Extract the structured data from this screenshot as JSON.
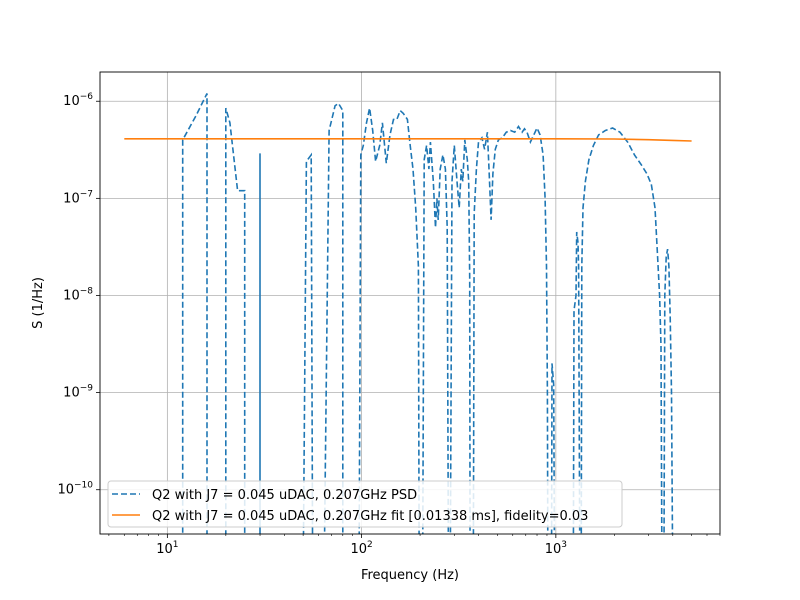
{
  "chart_data": {
    "type": "line",
    "xscale": "log",
    "yscale": "log",
    "xlabel": "Frequency (Hz)",
    "ylabel": "S (1/Hz)",
    "xlim": [
      4.5,
      7000
    ],
    "ylim": [
      3.5e-11,
      2e-06
    ],
    "grid": true,
    "x_ticks": [
      {
        "value": 10,
        "base": "10",
        "exp": "1"
      },
      {
        "value": 100,
        "base": "10",
        "exp": "2"
      },
      {
        "value": 1000,
        "base": "10",
        "exp": "3"
      }
    ],
    "y_ticks": [
      {
        "value": 1e-10,
        "base": "10",
        "exp": "−10"
      },
      {
        "value": 1e-09,
        "base": "10",
        "exp": "−9"
      },
      {
        "value": 1e-08,
        "base": "10",
        "exp": "−8"
      },
      {
        "value": 1e-07,
        "base": "10",
        "exp": "−7"
      },
      {
        "value": 1e-06,
        "base": "10",
        "exp": "−6"
      }
    ],
    "legend_position": "lower-left",
    "series": [
      {
        "name": "Q2 with J7 = 0.045 uDAC, 0.207GHz PSD",
        "color": "#1f77b4",
        "style": "dashed",
        "points": [
          [
            12,
            1e-11
          ],
          [
            12,
            4e-07
          ],
          [
            14,
            7e-07
          ],
          [
            16,
            1.2e-06
          ],
          [
            16,
            1e-11
          ],
          [
            20,
            1e-11
          ],
          [
            20,
            8.5e-07
          ],
          [
            21,
            6e-07
          ],
          [
            23,
            1.2e-07
          ],
          [
            25,
            1.2e-07
          ],
          [
            25,
            1e-11
          ],
          [
            30,
            1e-11
          ],
          [
            30,
            2.9e-07
          ],
          [
            30,
            1e-11
          ],
          [
            50,
            1e-11
          ],
          [
            52,
            2.4e-07
          ],
          [
            55,
            2.8e-07
          ],
          [
            56,
            1e-11
          ],
          [
            64,
            1e-11
          ],
          [
            68,
            5e-07
          ],
          [
            73,
            9e-07
          ],
          [
            76,
            9.5e-07
          ],
          [
            80,
            8e-07
          ],
          [
            80,
            1e-11
          ],
          [
            97,
            1e-11
          ],
          [
            99,
            2.8e-07
          ],
          [
            102,
            3.5e-07
          ],
          [
            106,
            6e-07
          ],
          [
            110,
            8.5e-07
          ],
          [
            114,
            5e-07
          ],
          [
            118,
            2.4e-07
          ],
          [
            124,
            3.5e-07
          ],
          [
            128,
            6e-07
          ],
          [
            134,
            2.3e-07
          ],
          [
            140,
            4.5e-07
          ],
          [
            146,
            6.5e-07
          ],
          [
            152,
            6.5e-07
          ],
          [
            158,
            8e-07
          ],
          [
            164,
            7.5e-07
          ],
          [
            172,
            6.5e-07
          ],
          [
            178,
            3.5e-07
          ],
          [
            184,
            2e-07
          ],
          [
            190,
            8e-08
          ],
          [
            196,
            2e-08
          ],
          [
            198,
            1e-11
          ],
          [
            206,
            1e-11
          ],
          [
            210,
            2.5e-07
          ],
          [
            216,
            3.5e-07
          ],
          [
            222,
            2e-07
          ],
          [
            226,
            3.8e-07
          ],
          [
            234,
            1.5e-07
          ],
          [
            240,
            5e-08
          ],
          [
            244,
            1e-07
          ],
          [
            248,
            6e-08
          ],
          [
            254,
            2e-07
          ],
          [
            262,
            2.8e-07
          ],
          [
            270,
            2e-07
          ],
          [
            276,
            5e-08
          ],
          [
            280,
            1e-11
          ],
          [
            286,
            1e-11
          ],
          [
            292,
            1.5e-07
          ],
          [
            300,
            3.5e-07
          ],
          [
            310,
            1.5e-07
          ],
          [
            318,
            8e-08
          ],
          [
            326,
            2e-07
          ],
          [
            332,
            1.5e-07
          ],
          [
            340,
            4e-07
          ],
          [
            350,
            2.5e-07
          ],
          [
            356,
            1.5e-07
          ],
          [
            360,
            1.5e-08
          ],
          [
            362,
            1e-11
          ],
          [
            376,
            1e-11
          ],
          [
            380,
            7e-08
          ],
          [
            390,
            2e-07
          ],
          [
            400,
            3.8e-07
          ],
          [
            416,
            4.2e-07
          ],
          [
            430,
            3.2e-07
          ],
          [
            444,
            4.8e-07
          ],
          [
            454,
            1.8e-07
          ],
          [
            464,
            6e-08
          ],
          [
            474,
            1.8e-07
          ],
          [
            488,
            3.2e-07
          ],
          [
            506,
            4e-07
          ],
          [
            530,
            4.2e-07
          ],
          [
            556,
            4.8e-07
          ],
          [
            584,
            5e-07
          ],
          [
            614,
            4.8e-07
          ],
          [
            642,
            5.5e-07
          ],
          [
            670,
            4.8e-07
          ],
          [
            690,
            5.2e-07
          ],
          [
            710,
            4.8e-07
          ],
          [
            740,
            3.8e-07
          ],
          [
            770,
            4.5e-07
          ],
          [
            800,
            5.3e-07
          ],
          [
            830,
            4.5e-07
          ],
          [
            860,
            2.8e-07
          ],
          [
            880,
            1e-07
          ],
          [
            895,
            2e-08
          ],
          [
            905,
            1e-09
          ],
          [
            910,
            1e-11
          ],
          [
            950,
            1e-11
          ],
          [
            955,
            2e-09
          ],
          [
            975,
            1.2e-09
          ],
          [
            985,
            1e-11
          ],
          [
            1230,
            1e-11
          ],
          [
            1240,
            7e-09
          ],
          [
            1270,
            1e-08
          ],
          [
            1280,
            4.5e-08
          ],
          [
            1300,
            3.5e-08
          ],
          [
            1310,
            2e-08
          ],
          [
            1330,
            1e-11
          ],
          [
            1350,
            1e-11
          ],
          [
            1360,
            2e-08
          ],
          [
            1380,
            8e-08
          ],
          [
            1420,
            1.5e-07
          ],
          [
            1480,
            2.5e-07
          ],
          [
            1560,
            3.5e-07
          ],
          [
            1660,
            4.5e-07
          ],
          [
            1800,
            5e-07
          ],
          [
            1960,
            5.3e-07
          ],
          [
            2140,
            4.8e-07
          ],
          [
            2340,
            3.8e-07
          ],
          [
            2540,
            2.8e-07
          ],
          [
            2760,
            2.2e-07
          ],
          [
            2940,
            1.8e-07
          ],
          [
            3100,
            1.4e-07
          ],
          [
            3240,
            8e-08
          ],
          [
            3340,
            2.5e-08
          ],
          [
            3420,
            1e-08
          ],
          [
            3480,
            3e-09
          ],
          [
            3520,
            1e-11
          ],
          [
            3600,
            1e-11
          ],
          [
            3640,
            1e-08
          ],
          [
            3700,
            2.5e-08
          ],
          [
            3760,
            3e-08
          ],
          [
            3820,
            2e-08
          ],
          [
            3880,
            6e-09
          ],
          [
            3940,
            1e-09
          ],
          [
            4000,
            1e-11
          ]
        ]
      },
      {
        "name": "Q2 with J7 = 0.045 uDAC, 0.207GHz fit [0.01338 ms], fidelity=0.03",
        "color": "#ff7f0e",
        "style": "solid",
        "points": [
          [
            6,
            4.1e-07
          ],
          [
            20,
            4.1e-07
          ],
          [
            100,
            4.1e-07
          ],
          [
            500,
            4.1e-07
          ],
          [
            1000,
            4.1e-07
          ],
          [
            2000,
            4.08e-07
          ],
          [
            3000,
            4.02e-07
          ],
          [
            4000,
            3.95e-07
          ],
          [
            5000,
            3.9e-07
          ]
        ]
      }
    ]
  }
}
